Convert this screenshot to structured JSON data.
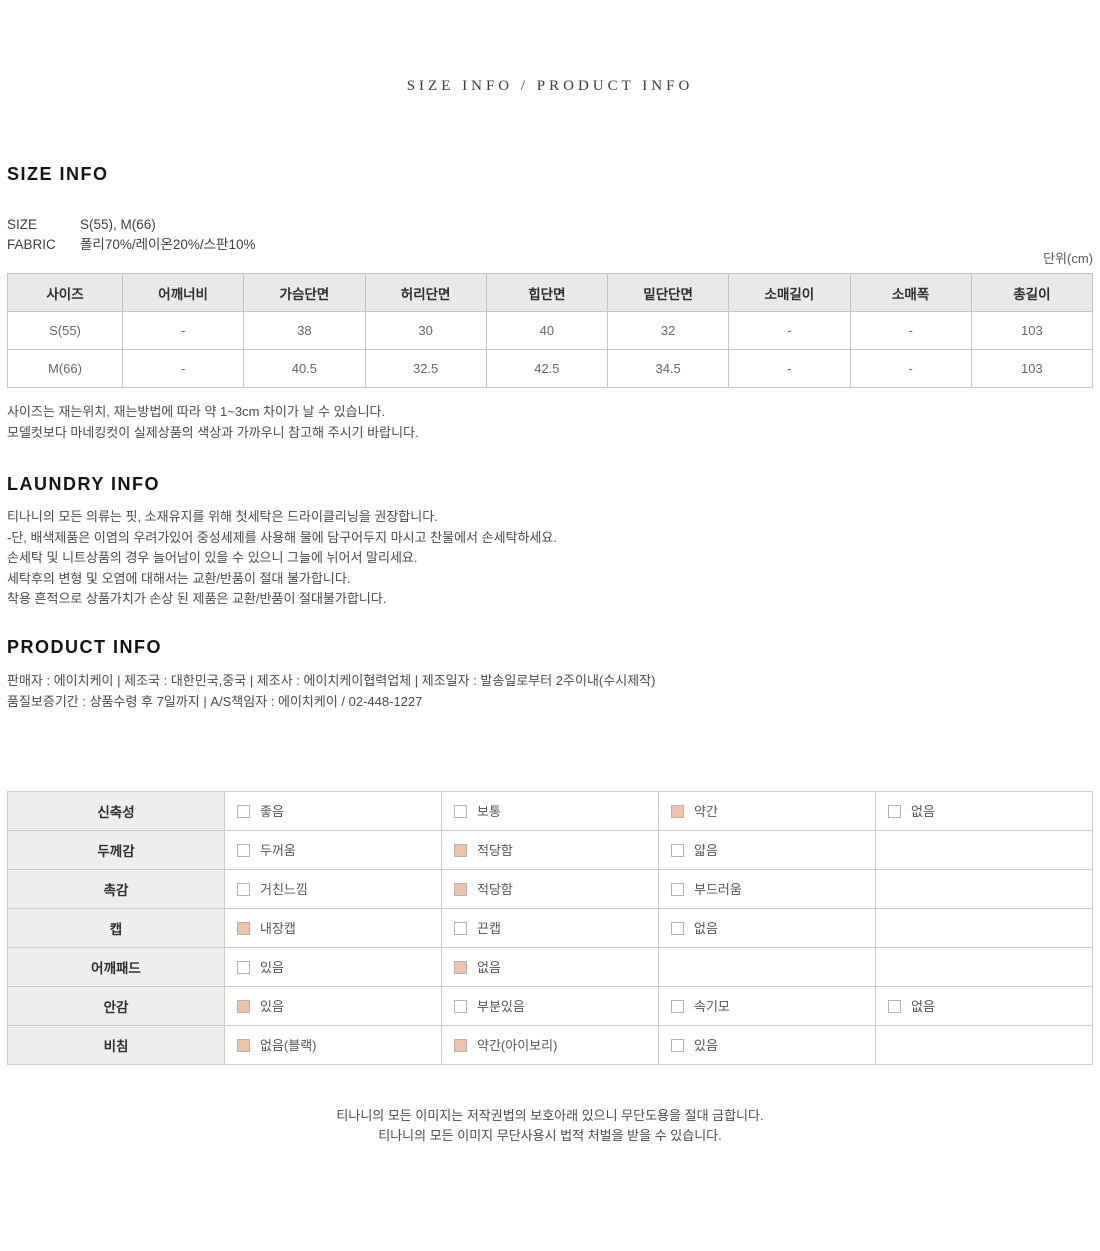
{
  "page": {
    "top_header": "SIZE INFO / PRODUCT INFO"
  },
  "colors": {
    "checkbox_checked_fill": "#edc3ab",
    "checkbox_border": "#b2b2b2",
    "table_header_bg": "#e9e9e9",
    "attr_label_bg": "#eeeeee"
  },
  "size_info": {
    "heading": "SIZE INFO",
    "meta": [
      {
        "label": "SIZE",
        "value": "S(55), M(66)"
      },
      {
        "label": "FABRIC",
        "value": "폴리70%/레이온20%/스판10%"
      }
    ],
    "unit_label": "단위(cm)",
    "table": {
      "headers": [
        "사이즈",
        "어깨너비",
        "가슴단면",
        "허리단면",
        "힙단면",
        "밑단단면",
        "소매길이",
        "소매폭",
        "총길이"
      ],
      "rows": [
        [
          "S(55)",
          "-",
          "38",
          "30",
          "40",
          "32",
          "-",
          "-",
          "103"
        ],
        [
          "M(66)",
          "-",
          "40.5",
          "32.5",
          "42.5",
          "34.5",
          "-",
          "-",
          "103"
        ]
      ]
    },
    "notes": [
      "사이즈는 재는위치, 재는방법에 따라 약 1~3cm 차이가 날 수 있습니다.",
      "모델컷보다 마네킹컷이 실제상품의 색상과 가까우니 참고해 주시기 바랍니다."
    ]
  },
  "laundry_info": {
    "heading": "LAUNDRY INFO",
    "lines": [
      "티나니의 모든 의류는 핏, 소재유지를 위해 첫세탁은 드라이클리닝을 권장합니다.",
      "-단, 배색제품은 이염의 우려가있어 중성세제를 사용해 물에 담구어두지 마시고 찬물에서 손세탁하세요.",
      "손세탁 및 니트상품의 경우 늘어남이 있을 수 있으니 그늘에 뉘어서 말리세요.",
      "세탁후의 변형 및 오염에 대해서는 교환/반품이 절대 불가합니다.",
      "착용 흔적으로 상품가치가 손상 된 제품은 교환/반품이 절대불가합니다."
    ]
  },
  "product_info": {
    "heading": "PRODUCT INFO",
    "lines": [
      "판매자 : 에이치케이 | 제조국 : 대한민국,중국 | 제조사 : 에이치케이협력업체 | 제조일자 : 발송일로부터 2주이내(수시제작)",
      "품질보증기간 : 상품수령 후 7일까지 | A/S책임자 : 에이치케이 / 02-448-1227"
    ]
  },
  "attributes": {
    "rows": [
      {
        "label": "신축성",
        "options": [
          {
            "text": "좋음",
            "checked": false
          },
          {
            "text": "보통",
            "checked": false
          },
          {
            "text": "약간",
            "checked": true
          },
          {
            "text": "없음",
            "checked": false
          }
        ]
      },
      {
        "label": "두께감",
        "options": [
          {
            "text": "두꺼움",
            "checked": false
          },
          {
            "text": "적당함",
            "checked": true
          },
          {
            "text": "얇음",
            "checked": false
          },
          null
        ]
      },
      {
        "label": "촉감",
        "options": [
          {
            "text": "거친느낌",
            "checked": false
          },
          {
            "text": "적당함",
            "checked": true
          },
          {
            "text": "부드러움",
            "checked": false
          },
          null
        ]
      },
      {
        "label": "캡",
        "options": [
          {
            "text": "내장캡",
            "checked": true
          },
          {
            "text": "끈캡",
            "checked": false
          },
          {
            "text": "없음",
            "checked": false
          },
          null
        ]
      },
      {
        "label": "어깨패드",
        "options": [
          {
            "text": "있음",
            "checked": false
          },
          {
            "text": "없음",
            "checked": true
          },
          null,
          null
        ]
      },
      {
        "label": "안감",
        "options": [
          {
            "text": "있음",
            "checked": true
          },
          {
            "text": "부분있음",
            "checked": false
          },
          {
            "text": "속기모",
            "checked": false
          },
          {
            "text": "없음",
            "checked": false
          }
        ]
      },
      {
        "label": "비침",
        "options": [
          {
            "text": "없음(블랙)",
            "checked": true
          },
          {
            "text": "약간(아이보리)",
            "checked": true
          },
          {
            "text": "있음",
            "checked": false
          },
          null
        ]
      }
    ]
  },
  "footer": {
    "lines": [
      "티나니의 모든 이미지는 저작권법의 보호아래 있으니 무단도용을 절대 금합니다.",
      "티나니의 모든 이미지 무단사용시 법적 처벌을 받을 수 있습니다."
    ]
  }
}
